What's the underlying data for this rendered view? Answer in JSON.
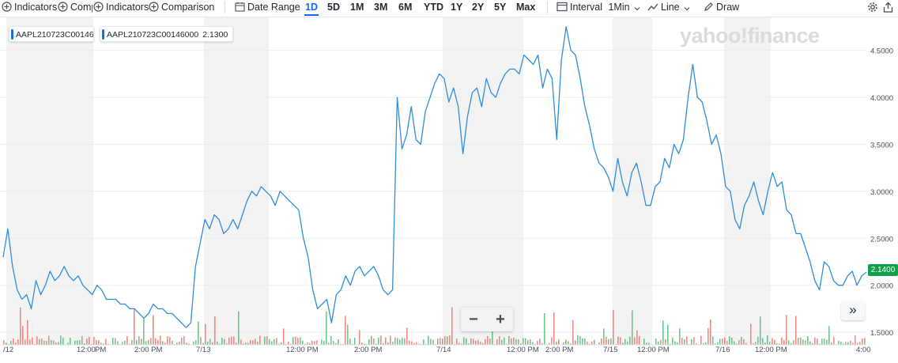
{
  "toolbar": {
    "indicators_1": "Indicators",
    "comparison_1": "Comp",
    "indicators_2": "Indicators",
    "comparison_2": "Comparison",
    "date_range": "Date Range",
    "ranges": [
      "1D",
      "5D",
      "1M",
      "3M",
      "6M",
      "YTD",
      "1Y",
      "2Y",
      "5Y",
      "Max"
    ],
    "active_range": "1D",
    "interval_label": "Interval",
    "interval_value": "1Min",
    "chart_type": "Line",
    "draw": "Draw"
  },
  "legend": {
    "chip1_symbol": "AAPL210723C00146",
    "chip2_symbol": "AAPL210723C00146000",
    "chip2_value": "2.1300"
  },
  "logo": "yahoo!finance",
  "current_price": "2.1400",
  "colors": {
    "line": "#2f8ddb",
    "vol_up": "#3db36b",
    "vol_down": "#e8675c",
    "band": "#f3f3f3",
    "price_tag": "#11a04a",
    "accent": "#0f69ff"
  },
  "icons": [
    "indicators-icon",
    "comparison-icon",
    "calendar-icon",
    "interval-icon",
    "line-chart-icon",
    "draw-icon",
    "gear-icon",
    "share-icon",
    "zoom-out-icon",
    "zoom-in-icon",
    "scroll-forward-icon"
  ],
  "zoom": {
    "minus": "−",
    "plus": "+"
  },
  "scroll_label": "»",
  "chart_data": {
    "type": "line",
    "ylim": [
      1.4,
      4.8
    ],
    "y_ticks": [
      "4.5000",
      "4.0000",
      "3.5000",
      "3.0000",
      "2.5000",
      "2.0000",
      "1.5000"
    ],
    "y_tick_values": [
      4.5,
      4.0,
      3.5,
      3.0,
      2.5,
      2.0,
      1.5
    ],
    "x_ticks": [
      "/12",
      "12:00",
      "PM",
      "2:00 PM",
      "7/13",
      "12:00 PM",
      "2:00 PM",
      "7/14",
      "12:00 PM",
      "2:00 PM",
      "7/15",
      "12:00 PM",
      "7/16",
      "12:00 PM",
      "4:00"
    ],
    "series": [
      {
        "values": [
          2.3,
          2.6,
          2.2,
          1.95,
          1.85,
          1.9,
          1.75,
          2.05,
          1.9,
          2.0,
          2.15,
          2.05,
          2.1,
          2.2,
          2.1,
          2.05,
          2.1,
          2.0,
          1.95,
          1.9,
          2.0,
          1.95,
          1.85,
          1.85,
          1.85,
          1.8,
          1.8,
          1.75,
          1.75,
          1.7,
          1.65,
          1.7,
          1.8,
          1.75,
          1.75,
          1.7,
          1.7,
          1.65,
          1.6,
          1.55,
          1.6,
          2.2,
          2.45,
          2.7,
          2.6,
          2.75,
          2.7,
          2.55,
          2.6,
          2.7,
          2.6,
          2.75,
          2.9,
          3.0,
          2.95,
          3.05,
          3.0,
          2.95,
          2.85,
          3.0,
          2.95,
          2.9,
          2.85,
          2.8,
          2.5,
          2.3,
          1.95,
          1.75,
          1.8,
          1.85,
          1.6,
          1.9,
          1.95,
          2.1,
          2.0,
          2.15,
          2.2,
          2.1,
          2.15,
          2.2,
          2.1,
          1.95,
          1.9,
          1.95,
          4.0,
          3.45,
          3.6,
          3.9,
          3.55,
          3.5,
          3.85,
          4.0,
          4.15,
          4.25,
          4.2,
          3.95,
          4.1,
          3.9,
          3.4,
          3.8,
          4.05,
          4.1,
          3.9,
          4.2,
          4.05,
          4.0,
          4.15,
          4.25,
          4.3,
          4.3,
          4.25,
          4.45,
          4.4,
          4.35,
          4.45,
          4.1,
          4.3,
          4.2,
          3.55,
          4.4,
          4.75,
          4.5,
          4.45,
          4.2,
          3.9,
          3.7,
          3.45,
          3.3,
          3.25,
          3.15,
          3.0,
          3.35,
          3.1,
          2.95,
          3.2,
          3.3,
          3.1,
          2.85,
          2.85,
          3.05,
          3.1,
          3.35,
          3.25,
          3.5,
          3.4,
          3.55,
          4.0,
          4.35,
          4.0,
          3.95,
          3.75,
          3.5,
          3.6,
          3.4,
          3.05,
          3.0,
          2.7,
          2.6,
          2.85,
          2.95,
          3.1,
          2.9,
          2.75,
          3.0,
          3.2,
          3.05,
          3.1,
          2.8,
          2.75,
          2.55,
          2.55,
          2.4,
          2.25,
          2.05,
          1.95,
          2.25,
          2.2,
          2.05,
          2.0,
          2.0,
          2.1,
          2.15,
          2.0,
          2.1,
          2.14
        ]
      }
    ]
  }
}
